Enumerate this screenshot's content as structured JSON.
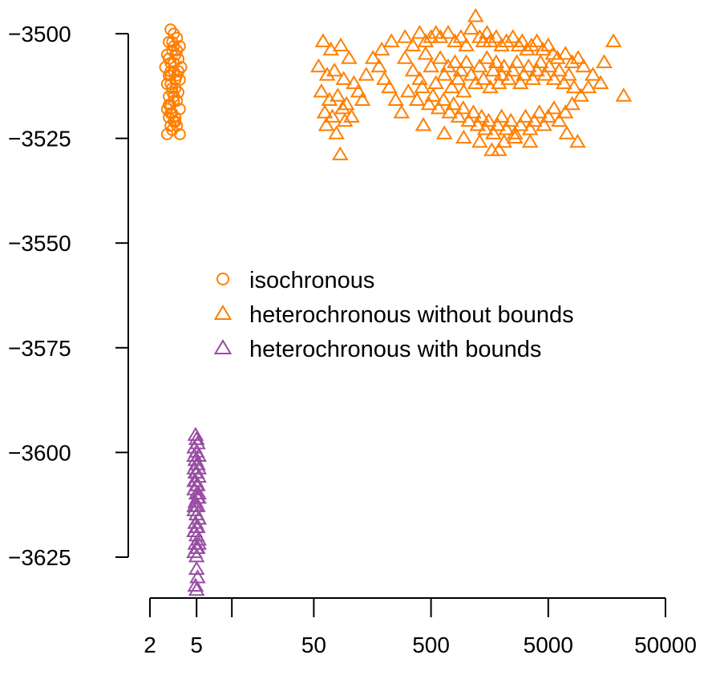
{
  "chart_data": {
    "type": "scatter",
    "title": "",
    "xlabel": "",
    "ylabel": "",
    "x_scale": "log",
    "x_range": [
      2,
      50000
    ],
    "y_range": [
      -3634,
      -3495
    ],
    "grid": false,
    "legend_position": "center",
    "x_ticks": [
      {
        "value": 2,
        "label": "2"
      },
      {
        "value": 5,
        "label": "5"
      },
      {
        "value": 10,
        "label": ""
      },
      {
        "value": 50,
        "label": "50"
      },
      {
        "value": 500,
        "label": "500"
      },
      {
        "value": 5000,
        "label": "5000"
      },
      {
        "value": 50000,
        "label": "50000"
      }
    ],
    "y_ticks": [
      {
        "value": -3500,
        "label": "−3500"
      },
      {
        "value": -3525,
        "label": "−3525"
      },
      {
        "value": -3550,
        "label": "−3550"
      },
      {
        "value": -3575,
        "label": "−3575"
      },
      {
        "value": -3600,
        "label": "−3600"
      },
      {
        "value": -3625,
        "label": "−3625"
      }
    ],
    "series": [
      {
        "name": "isochronous",
        "marker": "circle",
        "color": "#FF7F00",
        "points": [
          [
            3.0,
            -3499
          ],
          [
            3.2,
            -3500
          ],
          [
            3.4,
            -3501
          ],
          [
            2.9,
            -3502
          ],
          [
            3.6,
            -3503
          ],
          [
            3.1,
            -3504
          ],
          [
            2.8,
            -3505
          ],
          [
            3.3,
            -3505
          ],
          [
            3.5,
            -3506
          ],
          [
            3.0,
            -3507
          ],
          [
            2.7,
            -3508
          ],
          [
            3.7,
            -3508
          ],
          [
            3.2,
            -3509
          ],
          [
            2.9,
            -3510
          ],
          [
            3.4,
            -3510
          ],
          [
            3.6,
            -3511
          ],
          [
            3.0,
            -3512
          ],
          [
            2.8,
            -3512
          ],
          [
            3.3,
            -3513
          ],
          [
            3.1,
            -3514
          ],
          [
            3.5,
            -3514
          ],
          [
            2.9,
            -3515
          ],
          [
            3.2,
            -3516
          ],
          [
            3.4,
            -3516
          ],
          [
            3.0,
            -3517
          ],
          [
            2.8,
            -3518
          ],
          [
            3.6,
            -3518
          ],
          [
            3.1,
            -3519
          ],
          [
            3.3,
            -3520
          ],
          [
            2.9,
            -3520
          ],
          [
            3.2,
            -3521
          ],
          [
            3.0,
            -3522
          ],
          [
            3.4,
            -3522
          ],
          [
            3.1,
            -3523
          ],
          [
            2.8,
            -3524
          ],
          [
            3.6,
            -3524
          ],
          [
            3.2,
            -3507
          ],
          [
            3.0,
            -3509
          ],
          [
            3.3,
            -3511
          ],
          [
            3.1,
            -3513
          ],
          [
            2.9,
            -3506
          ],
          [
            3.5,
            -3509
          ],
          [
            3.2,
            -3515
          ],
          [
            3.0,
            -3519
          ],
          [
            3.4,
            -3504
          ],
          [
            3.1,
            -3502
          ],
          [
            2.9,
            -3517
          ],
          [
            3.3,
            -3521
          ],
          [
            3.2,
            -3503
          ],
          [
            3.0,
            -3510
          ]
        ]
      },
      {
        "name": "heterochronous without bounds",
        "marker": "triangle",
        "color": "#FF7F00",
        "points": [
          [
            60,
            -3502
          ],
          [
            70,
            -3504
          ],
          [
            85,
            -3503
          ],
          [
            100,
            -3506
          ],
          [
            55,
            -3508
          ],
          [
            65,
            -3510
          ],
          [
            75,
            -3509
          ],
          [
            90,
            -3511
          ],
          [
            110,
            -3512
          ],
          [
            58,
            -3514
          ],
          [
            68,
            -3516
          ],
          [
            80,
            -3515
          ],
          [
            95,
            -3517
          ],
          [
            120,
            -3514
          ],
          [
            62,
            -3519
          ],
          [
            72,
            -3520
          ],
          [
            88,
            -3518
          ],
          [
            105,
            -3520
          ],
          [
            130,
            -3516
          ],
          [
            64,
            -3522
          ],
          [
            78,
            -3524
          ],
          [
            92,
            -3521
          ],
          [
            84,
            -3529
          ],
          [
            140,
            -3510
          ],
          [
            160,
            -3506
          ],
          [
            180,
            -3508
          ],
          [
            200,
            -3511
          ],
          [
            220,
            -3513
          ],
          [
            250,
            -3516
          ],
          [
            280,
            -3519
          ],
          [
            190,
            -3504
          ],
          [
            230,
            -3502
          ],
          [
            300,
            -3501
          ],
          [
            350,
            -3503
          ],
          [
            400,
            -3500
          ],
          [
            450,
            -3502
          ],
          [
            500,
            -3501
          ],
          [
            550,
            -3500
          ],
          [
            600,
            -3501
          ],
          [
            700,
            -3500
          ],
          [
            800,
            -3502
          ],
          [
            900,
            -3501
          ],
          [
            1000,
            -3503
          ],
          [
            1100,
            -3499
          ],
          [
            1200,
            -3496
          ],
          [
            1300,
            -3501
          ],
          [
            1400,
            -3502
          ],
          [
            1500,
            -3500
          ],
          [
            1600,
            -3502
          ],
          [
            1800,
            -3501
          ],
          [
            2000,
            -3503
          ],
          [
            2200,
            -3502
          ],
          [
            2500,
            -3501
          ],
          [
            2800,
            -3503
          ],
          [
            3000,
            -3502
          ],
          [
            3300,
            -3504
          ],
          [
            3600,
            -3503
          ],
          [
            4000,
            -3502
          ],
          [
            4500,
            -3504
          ],
          [
            5000,
            -3503
          ],
          [
            5500,
            -3505
          ],
          [
            6000,
            -3506
          ],
          [
            7000,
            -3505
          ],
          [
            8000,
            -3507
          ],
          [
            9000,
            -3506
          ],
          [
            10000,
            -3508
          ],
          [
            12000,
            -3510
          ],
          [
            15000,
            -3507
          ],
          [
            18000,
            -3502
          ],
          [
            14000,
            -3512
          ],
          [
            22000,
            -3515
          ],
          [
            11000,
            -3513
          ],
          [
            300,
            -3506
          ],
          [
            350,
            -3509
          ],
          [
            400,
            -3511
          ],
          [
            450,
            -3505
          ],
          [
            500,
            -3508
          ],
          [
            550,
            -3512
          ],
          [
            600,
            -3506
          ],
          [
            650,
            -3510
          ],
          [
            700,
            -3508
          ],
          [
            750,
            -3513
          ],
          [
            800,
            -3507
          ],
          [
            850,
            -3511
          ],
          [
            900,
            -3509
          ],
          [
            950,
            -3514
          ],
          [
            1000,
            -3507
          ],
          [
            1100,
            -3510
          ],
          [
            1200,
            -3512
          ],
          [
            1300,
            -3508
          ],
          [
            1400,
            -3511
          ],
          [
            1500,
            -3506
          ],
          [
            1600,
            -3513
          ],
          [
            1700,
            -3509
          ],
          [
            1800,
            -3507
          ],
          [
            1900,
            -3512
          ],
          [
            2000,
            -3510
          ],
          [
            2100,
            -3508
          ],
          [
            2300,
            -3511
          ],
          [
            2500,
            -3509
          ],
          [
            2700,
            -3507
          ],
          [
            2900,
            -3512
          ],
          [
            3100,
            -3510
          ],
          [
            3400,
            -3508
          ],
          [
            3700,
            -3511
          ],
          [
            4000,
            -3509
          ],
          [
            4300,
            -3507
          ],
          [
            4700,
            -3510
          ],
          [
            5100,
            -3508
          ],
          [
            5600,
            -3511
          ],
          [
            6200,
            -3509
          ],
          [
            6800,
            -3512
          ],
          [
            7500,
            -3510
          ],
          [
            8300,
            -3513
          ],
          [
            320,
            -3514
          ],
          [
            380,
            -3516
          ],
          [
            420,
            -3513
          ],
          [
            480,
            -3517
          ],
          [
            520,
            -3515
          ],
          [
            580,
            -3518
          ],
          [
            640,
            -3516
          ],
          [
            720,
            -3519
          ],
          [
            780,
            -3517
          ],
          [
            860,
            -3520
          ],
          [
            940,
            -3518
          ],
          [
            1050,
            -3521
          ],
          [
            1150,
            -3519
          ],
          [
            1250,
            -3522
          ],
          [
            1350,
            -3520
          ],
          [
            1450,
            -3523
          ],
          [
            1550,
            -3521
          ],
          [
            1700,
            -3524
          ],
          [
            1850,
            -3522
          ],
          [
            2000,
            -3520
          ],
          [
            2200,
            -3523
          ],
          [
            2400,
            -3521
          ],
          [
            2600,
            -3524
          ],
          [
            2900,
            -3522
          ],
          [
            3200,
            -3520
          ],
          [
            3500,
            -3523
          ],
          [
            3800,
            -3521
          ],
          [
            4200,
            -3519
          ],
          [
            4600,
            -3522
          ],
          [
            5000,
            -3520
          ],
          [
            5600,
            -3518
          ],
          [
            6200,
            -3521
          ],
          [
            7000,
            -3519
          ],
          [
            8000,
            -3517
          ],
          [
            9500,
            -3515
          ],
          [
            1650,
            -3528
          ],
          [
            1900,
            -3528
          ],
          [
            2600,
            -3525
          ],
          [
            3500,
            -3526
          ],
          [
            7200,
            -3524
          ],
          [
            8900,
            -3526
          ],
          [
            430,
            -3522
          ],
          [
            650,
            -3524
          ],
          [
            950,
            -3525
          ],
          [
            1300,
            -3526
          ],
          [
            2100,
            -3526
          ]
        ]
      },
      {
        "name": "heterochronous with bounds",
        "marker": "triangle",
        "color": "#984EA3",
        "points": [
          [
            4.9,
            -3596
          ],
          [
            5.0,
            -3597
          ],
          [
            5.1,
            -3598
          ],
          [
            4.8,
            -3599
          ],
          [
            5.0,
            -3600
          ],
          [
            5.2,
            -3601
          ],
          [
            4.9,
            -3602
          ],
          [
            5.1,
            -3603
          ],
          [
            4.8,
            -3604
          ],
          [
            5.0,
            -3605
          ],
          [
            5.2,
            -3606
          ],
          [
            4.9,
            -3607
          ],
          [
            5.1,
            -3608
          ],
          [
            4.8,
            -3609
          ],
          [
            5.0,
            -3610
          ],
          [
            5.2,
            -3611
          ],
          [
            4.9,
            -3612
          ],
          [
            5.1,
            -3613
          ],
          [
            4.8,
            -3614
          ],
          [
            5.0,
            -3615
          ],
          [
            5.2,
            -3616
          ],
          [
            4.9,
            -3617
          ],
          [
            5.1,
            -3618
          ],
          [
            4.8,
            -3619
          ],
          [
            5.0,
            -3620
          ],
          [
            5.2,
            -3621
          ],
          [
            4.9,
            -3622
          ],
          [
            5.1,
            -3623
          ],
          [
            4.8,
            -3624
          ],
          [
            5.0,
            -3625
          ],
          [
            5.0,
            -3628
          ],
          [
            5.1,
            -3630
          ],
          [
            4.9,
            -3632
          ],
          [
            5.0,
            -3633
          ],
          [
            4.8,
            -3601
          ],
          [
            5.2,
            -3604
          ],
          [
            4.8,
            -3607
          ],
          [
            5.2,
            -3610
          ],
          [
            4.8,
            -3613
          ],
          [
            5.2,
            -3616
          ],
          [
            4.8,
            -3619
          ],
          [
            5.2,
            -3622
          ],
          [
            5.0,
            -3603
          ],
          [
            5.0,
            -3608
          ],
          [
            5.0,
            -3613
          ],
          [
            5.0,
            -3618
          ],
          [
            5.0,
            -3623
          ],
          [
            4.9,
            -3605
          ],
          [
            5.1,
            -3611
          ],
          [
            4.9,
            -3617
          ]
        ]
      }
    ]
  }
}
